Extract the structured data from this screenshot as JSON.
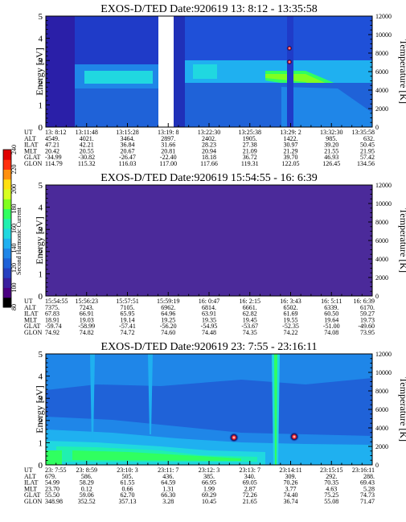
{
  "colorbar": {
    "label": "Second Harmonic Current",
    "ticks": [
      "80",
      "100",
      "120",
      "140",
      "160",
      "180",
      "200",
      "220",
      "240"
    ],
    "colors": [
      "#000000",
      "#4b0082",
      "#3a1f9e",
      "#2740c0",
      "#1f62d8",
      "#1f86e8",
      "#1fb0f0",
      "#20d8e0",
      "#20f0b0",
      "#30ff60",
      "#80ff20",
      "#d8ff20",
      "#ffe010",
      "#ff9010",
      "#ff3010",
      "#e00000"
    ]
  },
  "ephemeris_labels": [
    "UT",
    "ALT",
    "ILAT",
    "MLT",
    "GLAT",
    "GLON"
  ],
  "chart_data": [
    {
      "type": "heatmap",
      "title": "EXOS-D/TED   Date:920619  13: 8:12 - 13:35:58",
      "ylabel": "Energy [eV]",
      "y2label": "Temperature [K]",
      "ylim": [
        0,
        5
      ],
      "y2lim": [
        0,
        12000
      ],
      "yticks": [
        "0",
        "1",
        "2",
        "3",
        "4",
        "5"
      ],
      "y2ticks": [
        "0",
        "2000",
        "4000",
        "6000",
        "8000",
        "10000",
        "12000"
      ],
      "background": "#1f50d8",
      "ephemeris": [
        [
          "13: 8:12",
          "4549.",
          "47.21",
          "20.42",
          "-34.99",
          "114.79"
        ],
        [
          "13:11:48",
          "4021.",
          "42.21",
          "20.55",
          "-30.82",
          "115.32"
        ],
        [
          "13:15:28",
          "3464.",
          "36.84",
          "20.67",
          "-26.47",
          "116.03"
        ],
        [
          "13:19: 8",
          "2897.",
          "31.66",
          "20.81",
          "-22.40",
          "117.00"
        ],
        [
          "13:22:30",
          "2402.",
          "28.23",
          "20.94",
          "18.18",
          "117.66"
        ],
        [
          "13:25:38",
          "1905.",
          "27.38",
          "21.09",
          "36.72",
          "119.31"
        ],
        [
          "13:29: 2",
          "1422.",
          "30.97",
          "21.29",
          "39.70",
          "122.05"
        ],
        [
          "13:32:30",
          "985.",
          "39.20",
          "21.55",
          "46.93",
          "126.45"
        ],
        [
          "13:35:58",
          "632.",
          "50.45",
          "21.95",
          "57.42",
          "134.56"
        ]
      ]
    },
    {
      "type": "heatmap",
      "title": "EXOS-D/TED   Date:920619  15:54:55 - 16: 6:39",
      "ylabel": "Energy [eV]",
      "y2label": "Temperature [K]",
      "ylim": [
        0,
        5
      ],
      "y2lim": [
        0,
        12000
      ],
      "yticks": [
        "0",
        "1",
        "2",
        "3",
        "4",
        "5"
      ],
      "y2ticks": [
        "0",
        "2000",
        "4000",
        "6000",
        "8000",
        "10000",
        "12000"
      ],
      "background": "#4b2a9a",
      "ephemeris": [
        [
          "15:54:55",
          "7375.",
          "67.83",
          "18.91",
          "-59.74",
          "74.92"
        ],
        [
          "15:56:23",
          "7243.",
          "66.91",
          "19.03",
          "-58.99",
          "74.82"
        ],
        [
          "15:57:51",
          "7105.",
          "65.95",
          "19.14",
          "-57.41",
          "74.72"
        ],
        [
          "15:59:19",
          "6962.",
          "64.96",
          "19.25",
          "-56.20",
          "74.60"
        ],
        [
          "16: 0:47",
          "6814.",
          "63.91",
          "19.35",
          "-54.95",
          "74.48"
        ],
        [
          "16: 2:15",
          "6661.",
          "62.82",
          "19.45",
          "-53.67",
          "74.35"
        ],
        [
          "16: 3:43",
          "6502.",
          "61.69",
          "19.55",
          "-52.35",
          "74.22"
        ],
        [
          "16: 5:11",
          "6339.",
          "60.50",
          "19.64",
          "-51.00",
          "74.08"
        ],
        [
          "16: 6:39",
          "6170.",
          "59.27",
          "19.73",
          "-49.60",
          "73.95"
        ]
      ]
    },
    {
      "type": "heatmap",
      "title": "EXOS-D/TED   Date:920619  23: 7:55 - 23:16:11",
      "ylabel": "Energy [eV]",
      "y2label": "Temperature [K]",
      "ylim": [
        0,
        5
      ],
      "y2lim": [
        0,
        12000
      ],
      "yticks": [
        "0",
        "1",
        "2",
        "3",
        "4",
        "5"
      ],
      "y2ticks": [
        "0",
        "2000",
        "4000",
        "6000",
        "8000",
        "10000",
        "12000"
      ],
      "background": "#1f62d8",
      "ephemeris": [
        [
          "23: 7:55",
          "679.",
          "54.99",
          "23.70",
          "55.50",
          "348.98"
        ],
        [
          "23: 8:59",
          "586.",
          "58.29",
          "0.12",
          "59.06",
          "352.52"
        ],
        [
          "23:10: 3",
          "505.",
          "61.55",
          "0.66",
          "62.70",
          "357.13"
        ],
        [
          "23:11: 7",
          "436.",
          "64.59",
          "1.31",
          "66.30",
          "3.28"
        ],
        [
          "23:12: 3",
          "385.",
          "66.95",
          "1.99",
          "69.29",
          "10.45"
        ],
        [
          "23:13: 7",
          "340.",
          "69.05",
          "2.87",
          "72.26",
          "21.65"
        ],
        [
          "23:14:11",
          "309.",
          "70.26",
          "3.77",
          "74.40",
          "36.74"
        ],
        [
          "23:15:15",
          "292.",
          "70.35",
          "4.63",
          "75.25",
          "55.08"
        ],
        [
          "23:16:11",
          "288.",
          "69.43",
          "5.28",
          "74.73",
          "71.47"
        ]
      ]
    }
  ]
}
